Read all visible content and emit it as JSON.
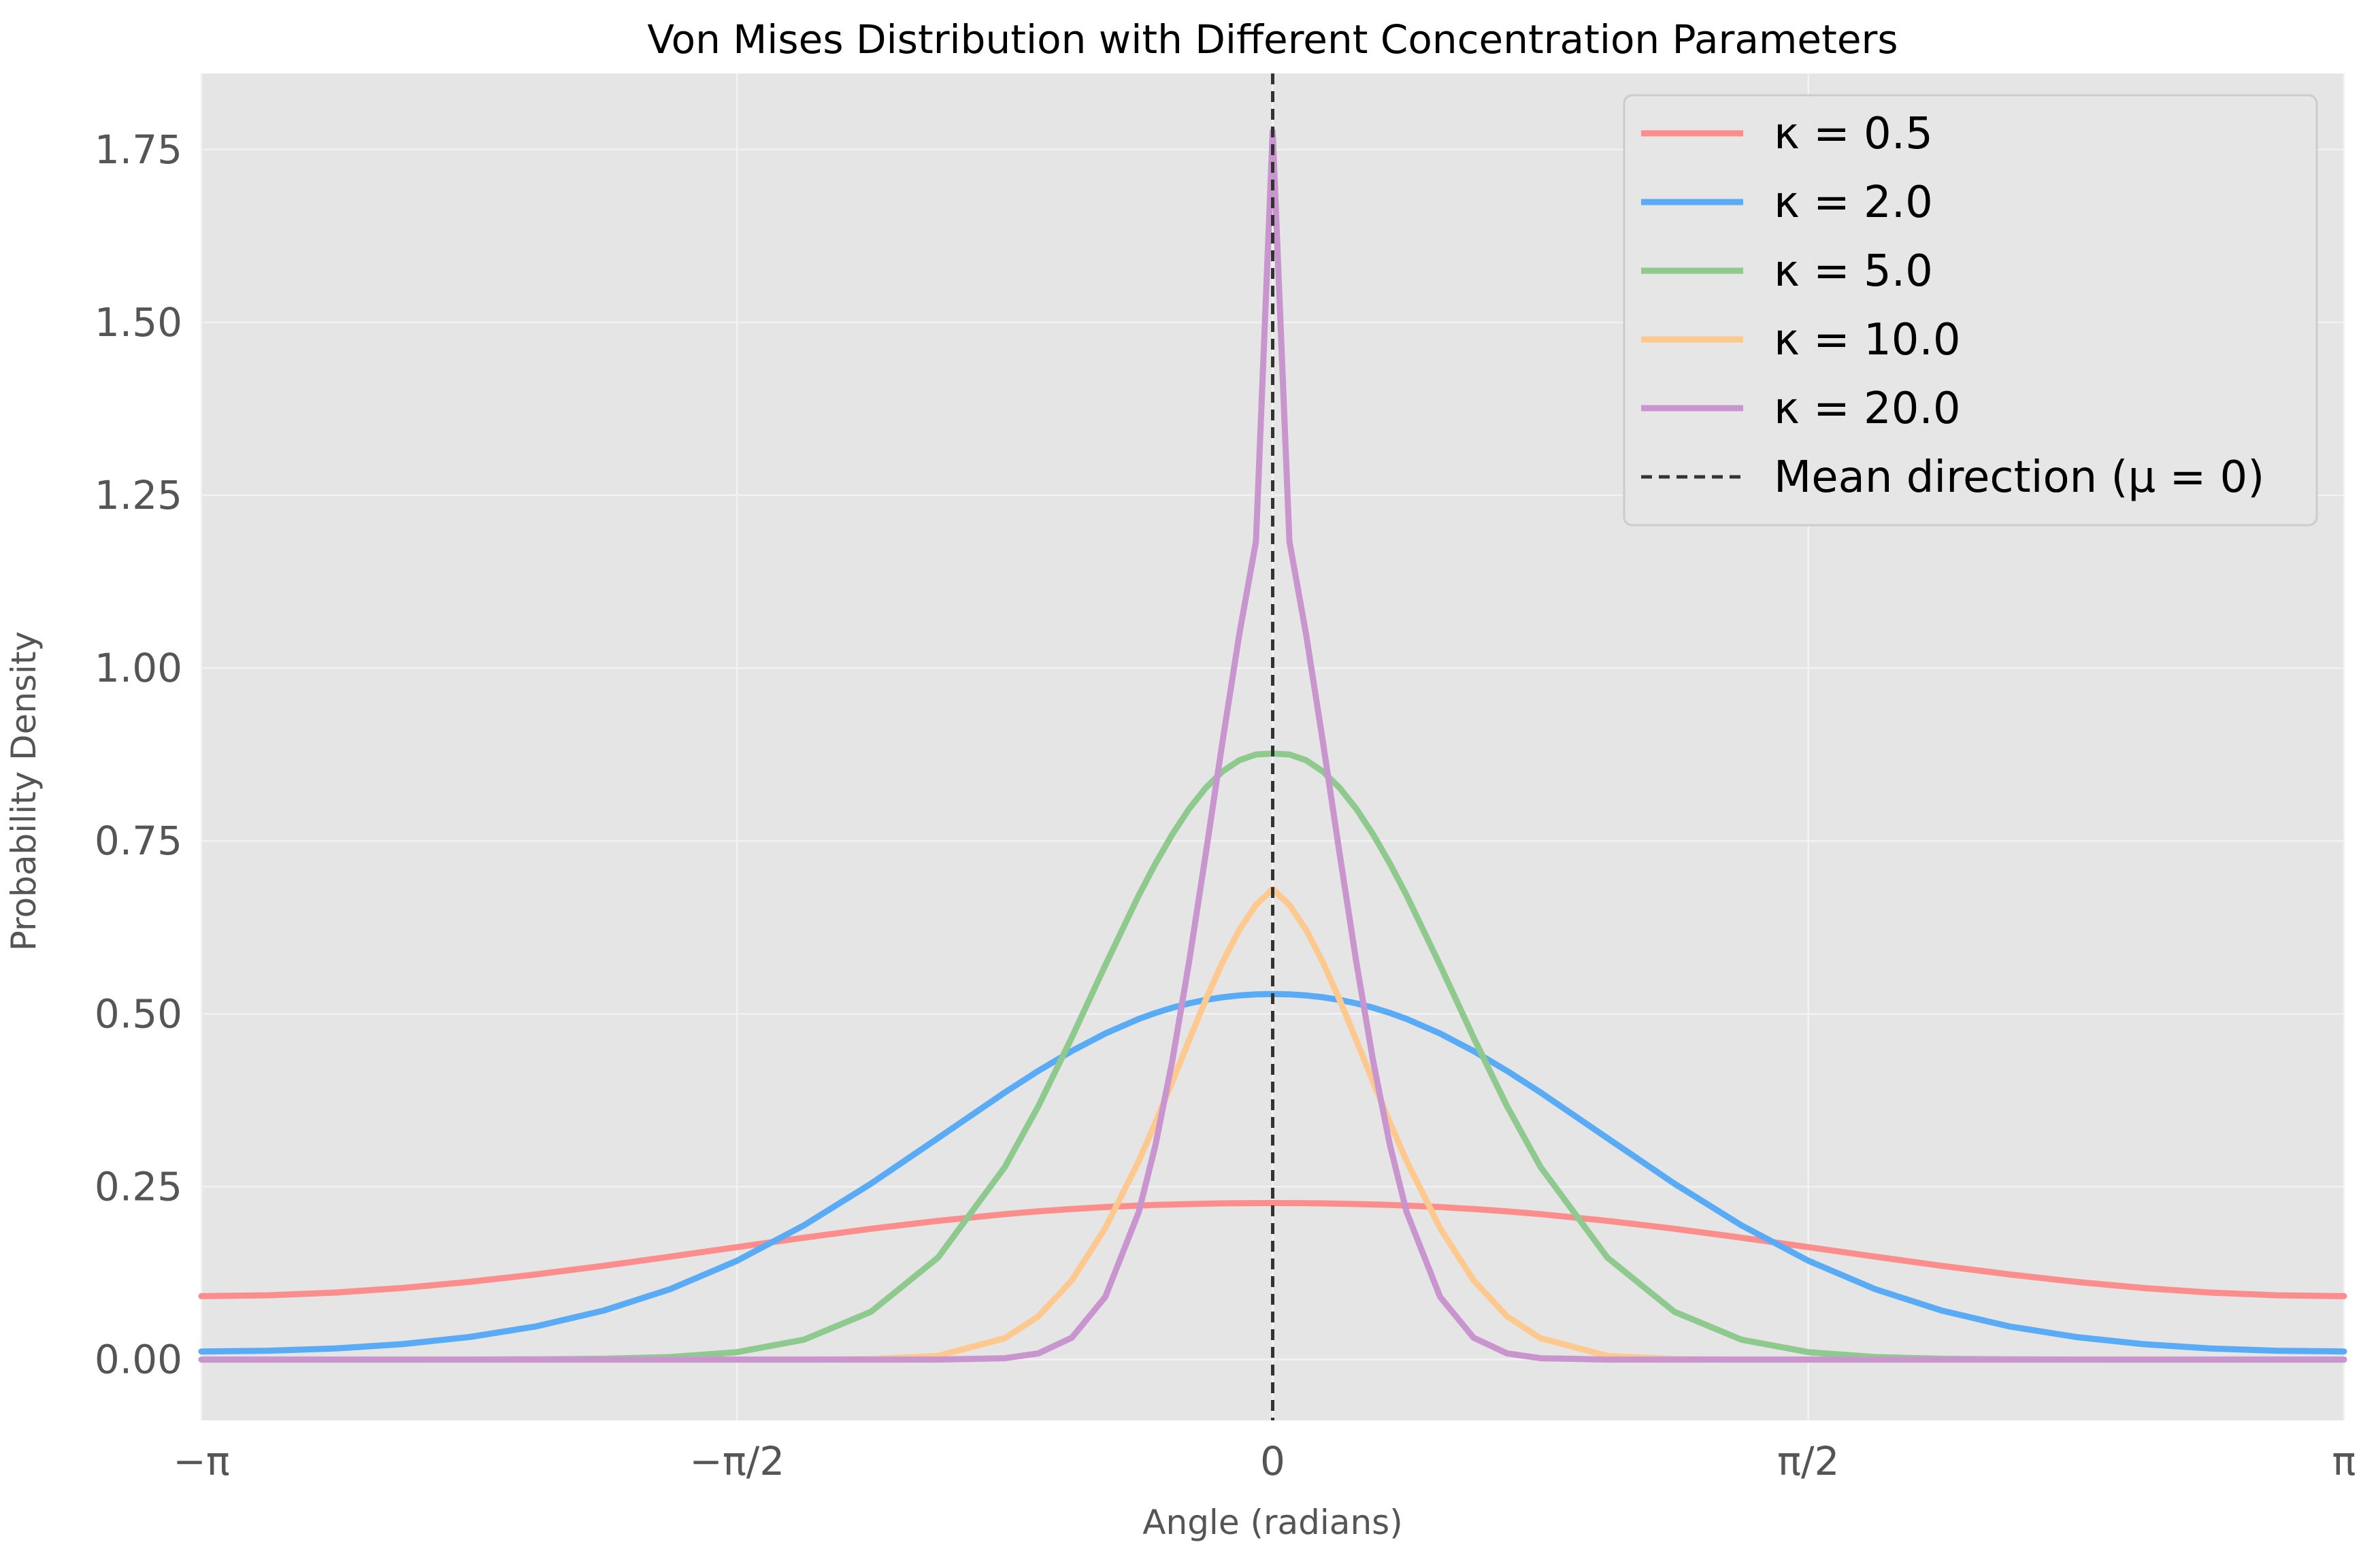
{
  "chart_data": {
    "type": "line",
    "title": "Von Mises Distribution with Different Concentration Parameters",
    "xlabel": "Angle (radians)",
    "ylabel": "Probability Density",
    "xlim": [
      -3.14159,
      3.14159
    ],
    "ylim": [
      -0.088,
      1.86
    ],
    "x_ticks": [
      {
        "value": -3.14159,
        "label": "−π"
      },
      {
        "value": -1.5708,
        "label": "−π/2"
      },
      {
        "value": 0,
        "label": "0"
      },
      {
        "value": 1.5708,
        "label": "π/2"
      },
      {
        "value": 3.14159,
        "label": "π"
      }
    ],
    "y_ticks": [
      {
        "value": 0.0,
        "label": "0.00"
      },
      {
        "value": 0.25,
        "label": "0.25"
      },
      {
        "value": 0.5,
        "label": "0.50"
      },
      {
        "value": 0.75,
        "label": "0.75"
      },
      {
        "value": 1.0,
        "label": "1.00"
      },
      {
        "value": 1.25,
        "label": "1.25"
      },
      {
        "value": 1.5,
        "label": "1.50"
      },
      {
        "value": 1.75,
        "label": "1.75"
      }
    ],
    "grid": true,
    "legend_position": "top-right",
    "x": [
      -3.1416,
      -2.9452,
      -2.7489,
      -2.5525,
      -2.3562,
      -2.1598,
      -1.9635,
      -1.7671,
      -1.5708,
      -1.3744,
      -1.1781,
      -0.9817,
      -0.7854,
      -0.6872,
      -0.589,
      -0.4909,
      -0.3927,
      -0.3436,
      -0.2945,
      -0.2454,
      -0.1963,
      -0.1473,
      -0.0982,
      -0.0491,
      0.0,
      0.0491,
      0.0982,
      0.1473,
      0.1963,
      0.2454,
      0.2945,
      0.3436,
      0.3927,
      0.4909,
      0.589,
      0.6872,
      0.7854,
      0.9817,
      1.1781,
      1.3744,
      1.5708,
      1.7671,
      1.9635,
      2.1598,
      2.3562,
      2.5525,
      2.7489,
      2.9452,
      3.1416
    ],
    "series": [
      {
        "name": "κ = 0.5",
        "color": "#fc8d8d",
        "values": [
          0.0916,
          0.0929,
          0.0969,
          0.1035,
          0.1123,
          0.1231,
          0.1354,
          0.1488,
          0.1626,
          0.1763,
          0.1891,
          0.2006,
          0.2103,
          0.2143,
          0.2177,
          0.2205,
          0.2227,
          0.2236,
          0.2243,
          0.2249,
          0.2254,
          0.2258,
          0.2261,
          0.2262,
          0.2263,
          0.2262,
          0.2261,
          0.2258,
          0.2254,
          0.2249,
          0.2243,
          0.2236,
          0.2227,
          0.2205,
          0.2177,
          0.2143,
          0.2103,
          0.2006,
          0.1891,
          0.1763,
          0.1626,
          0.1488,
          0.1354,
          0.1231,
          0.1123,
          0.1035,
          0.0969,
          0.0929,
          0.0916
        ]
      },
      {
        "name": "κ = 2.0",
        "color": "#5aabf5",
        "values": [
          0.0117,
          0.0127,
          0.016,
          0.0223,
          0.0325,
          0.048,
          0.0706,
          0.1018,
          0.1429,
          0.1942,
          0.2544,
          0.3202,
          0.3863,
          0.4175,
          0.4462,
          0.4715,
          0.4926,
          0.5013,
          0.5088,
          0.5151,
          0.5201,
          0.5239,
          0.5266,
          0.5282,
          0.5287,
          0.5282,
          0.5266,
          0.5239,
          0.5201,
          0.5151,
          0.5088,
          0.5013,
          0.4926,
          0.4715,
          0.4462,
          0.4175,
          0.3863,
          0.3202,
          0.2544,
          0.1942,
          0.1429,
          0.1018,
          0.0706,
          0.048,
          0.0325,
          0.0223,
          0.016,
          0.0127,
          0.0117
        ]
      },
      {
        "name": "κ = 5.0",
        "color": "#8ec98e",
        "values": [
          0.0,
          0.0,
          0.0,
          0.0,
          0.0001,
          0.0003,
          0.0011,
          0.0036,
          0.0107,
          0.0288,
          0.0691,
          0.1473,
          0.2786,
          0.3664,
          0.4659,
          0.5704,
          0.6714,
          0.7175,
          0.7595,
          0.7963,
          0.8268,
          0.8505,
          0.8667,
          0.8751,
          0.8764,
          0.8751,
          0.8667,
          0.8505,
          0.8268,
          0.7963,
          0.7595,
          0.7175,
          0.6714,
          0.5704,
          0.4659,
          0.3664,
          0.2786,
          0.1473,
          0.0691,
          0.0288,
          0.0107,
          0.0036,
          0.0011,
          0.0003,
          0.0001,
          0.0,
          0.0,
          0.0,
          0.0
        ]
      },
      {
        "name": "κ = 10.0",
        "color": "#fdc98f",
        "values": [
          0.0,
          0.0,
          0.0,
          0.0,
          0.0,
          0.0,
          0.0,
          0.0,
          0.0,
          0.0001,
          0.0007,
          0.0053,
          0.0309,
          0.0625,
          0.1146,
          0.1901,
          0.2871,
          0.3427,
          0.4016,
          0.4617,
          0.5202,
          0.5745,
          0.6213,
          0.6574,
          0.6805,
          0.6574,
          0.6213,
          0.5745,
          0.5202,
          0.4617,
          0.4016,
          0.3427,
          0.2871,
          0.1901,
          0.1146,
          0.0625,
          0.0309,
          0.0053,
          0.0007,
          0.0001,
          0.0,
          0.0,
          0.0,
          0.0,
          0.0,
          0.0,
          0.0,
          0.0,
          0.0
        ]
      },
      {
        "name": "κ = 20.0",
        "color": "#c895cf",
        "values": [
          0.0,
          0.0,
          0.0,
          0.0,
          0.0,
          0.0,
          0.0,
          0.0,
          0.0,
          0.0,
          0.0,
          0.0,
          0.0019,
          0.0089,
          0.0316,
          0.0907,
          0.2134,
          0.3106,
          0.4318,
          0.5742,
          0.7313,
          0.8932,
          1.0482,
          1.1832,
          1.7765,
          1.1832,
          1.0482,
          0.8932,
          0.7313,
          0.5742,
          0.4318,
          0.3106,
          0.2134,
          0.0907,
          0.0316,
          0.0089,
          0.0019,
          0.0,
          0.0,
          0.0,
          0.0,
          0.0,
          0.0,
          0.0,
          0.0,
          0.0,
          0.0,
          0.0,
          0.0
        ]
      }
    ],
    "reference_lines": [
      {
        "name": "Mean direction (μ = 0)",
        "orientation": "vertical",
        "x": 0,
        "color": "#333333",
        "style": "dashed"
      }
    ],
    "legend": [
      {
        "label": "κ = 0.5",
        "color": "#fc8d8d",
        "style": "solid"
      },
      {
        "label": "κ = 2.0",
        "color": "#5aabf5",
        "style": "solid"
      },
      {
        "label": "κ = 5.0",
        "color": "#8ec98e",
        "style": "solid"
      },
      {
        "label": "κ = 10.0",
        "color": "#fdc98f",
        "style": "solid"
      },
      {
        "label": "κ = 20.0",
        "color": "#c895cf",
        "style": "solid"
      },
      {
        "label": "Mean direction (μ = 0)",
        "color": "#333333",
        "style": "dashed"
      }
    ],
    "colors": {
      "plot_background": "#e5e5e5",
      "grid": "#f2f2f2",
      "tick_text": "#555555",
      "title_text": "#000000"
    }
  }
}
